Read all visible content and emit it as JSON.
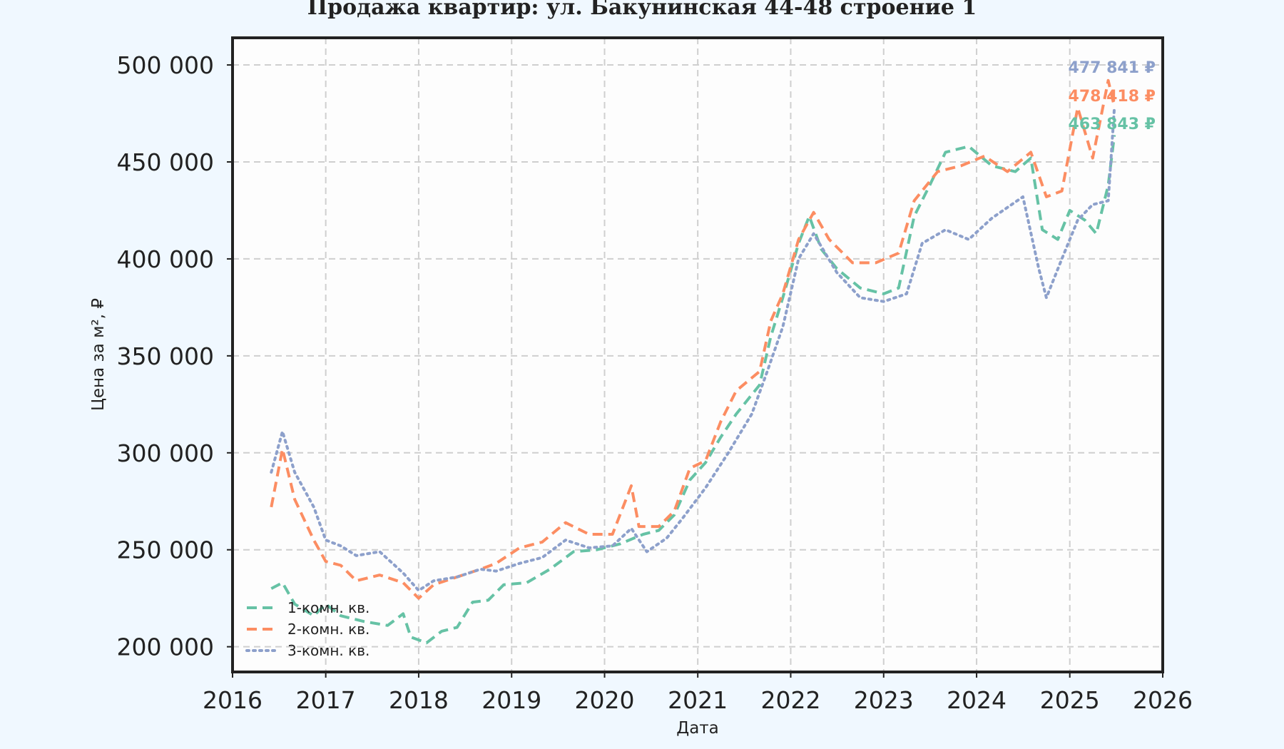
{
  "chart_data": {
    "type": "line",
    "title": "Продажа квартир: ул. Бакунинская 44-48 строение 1",
    "xlabel": "Дата",
    "ylabel": "Цена за м², ₽",
    "xlim": [
      "2016-01-01",
      "2026-01-01"
    ],
    "ylim": [
      187000,
      514000
    ],
    "x_ticks": [
      "2016",
      "2017",
      "2018",
      "2019",
      "2020",
      "2021",
      "2022",
      "2023",
      "2024",
      "2025",
      "2026"
    ],
    "y_ticks": [
      200000,
      250000,
      300000,
      350000,
      400000,
      450000,
      500000
    ],
    "y_tick_labels": [
      "200 000",
      "250 000",
      "300 000",
      "350 000",
      "400 000",
      "450 000",
      "500 000"
    ],
    "grid": true,
    "legend_position": "bottom-left",
    "series": [
      {
        "name": "1-комн. кв.",
        "color": "#66c2a5",
        "dash": "dashed",
        "end_label": "463 843 ₽",
        "points": [
          [
            "2016-06-01",
            230000
          ],
          [
            "2016-07-15",
            233000
          ],
          [
            "2016-09-01",
            222000
          ],
          [
            "2016-11-15",
            216000
          ],
          [
            "2017-01-01",
            222000
          ],
          [
            "2017-03-01",
            216000
          ],
          [
            "2017-06-01",
            213000
          ],
          [
            "2017-09-01",
            211000
          ],
          [
            "2017-11-01",
            217000
          ],
          [
            "2017-12-01",
            205000
          ],
          [
            "2018-02-01",
            202000
          ],
          [
            "2018-04-01",
            208000
          ],
          [
            "2018-06-01",
            210000
          ],
          [
            "2018-08-01",
            223000
          ],
          [
            "2018-10-01",
            224000
          ],
          [
            "2018-12-01",
            232000
          ],
          [
            "2019-03-01",
            233000
          ],
          [
            "2019-06-01",
            240000
          ],
          [
            "2019-09-01",
            249000
          ],
          [
            "2019-12-01",
            250000
          ],
          [
            "2020-03-01",
            253000
          ],
          [
            "2020-06-01",
            258000
          ],
          [
            "2020-08-01",
            260000
          ],
          [
            "2020-10-01",
            268000
          ],
          [
            "2020-12-01",
            286000
          ],
          [
            "2021-02-01",
            295000
          ],
          [
            "2021-04-01",
            308000
          ],
          [
            "2021-06-01",
            320000
          ],
          [
            "2021-09-01",
            335000
          ],
          [
            "2021-10-15",
            360000
          ],
          [
            "2021-12-01",
            380000
          ],
          [
            "2022-02-01",
            408000
          ],
          [
            "2022-03-15",
            422000
          ],
          [
            "2022-05-01",
            405000
          ],
          [
            "2022-07-01",
            395000
          ],
          [
            "2022-10-01",
            385000
          ],
          [
            "2023-01-01",
            382000
          ],
          [
            "2023-03-01",
            385000
          ],
          [
            "2023-05-01",
            422000
          ],
          [
            "2023-07-01",
            438000
          ],
          [
            "2023-09-01",
            455000
          ],
          [
            "2023-12-01",
            458000
          ],
          [
            "2024-03-01",
            448000
          ],
          [
            "2024-06-01",
            445000
          ],
          [
            "2024-08-01",
            452000
          ],
          [
            "2024-09-15",
            415000
          ],
          [
            "2024-11-15",
            410000
          ],
          [
            "2025-01-01",
            425000
          ],
          [
            "2025-03-01",
            420000
          ],
          [
            "2025-04-15",
            413000
          ],
          [
            "2025-06-01",
            438000
          ],
          [
            "2025-06-25",
            463843
          ]
        ]
      },
      {
        "name": "2-комн. кв.",
        "color": "#fc8d62",
        "dash": "dashed",
        "end_label": "478 418 ₽",
        "points": [
          [
            "2016-06-01",
            272000
          ],
          [
            "2016-07-15",
            302000
          ],
          [
            "2016-09-01",
            276000
          ],
          [
            "2016-11-15",
            255000
          ],
          [
            "2017-01-01",
            244000
          ],
          [
            "2017-03-01",
            242000
          ],
          [
            "2017-05-01",
            234000
          ],
          [
            "2017-08-01",
            237000
          ],
          [
            "2017-11-01",
            233000
          ],
          [
            "2018-01-01",
            225000
          ],
          [
            "2018-03-01",
            232000
          ],
          [
            "2018-06-01",
            236000
          ],
          [
            "2018-09-01",
            240000
          ],
          [
            "2018-11-01",
            243000
          ],
          [
            "2019-02-01",
            251000
          ],
          [
            "2019-05-01",
            254000
          ],
          [
            "2019-08-01",
            264000
          ],
          [
            "2019-11-01",
            258000
          ],
          [
            "2020-02-01",
            258000
          ],
          [
            "2020-04-15",
            283000
          ],
          [
            "2020-05-15",
            262000
          ],
          [
            "2020-08-01",
            262000
          ],
          [
            "2020-10-01",
            270000
          ],
          [
            "2020-12-01",
            292000
          ],
          [
            "2021-02-01",
            296000
          ],
          [
            "2021-04-01",
            316000
          ],
          [
            "2021-06-01",
            332000
          ],
          [
            "2021-09-01",
            342000
          ],
          [
            "2021-10-15",
            368000
          ],
          [
            "2021-12-01",
            382000
          ],
          [
            "2022-02-01",
            410000
          ],
          [
            "2022-04-01",
            424000
          ],
          [
            "2022-06-01",
            410000
          ],
          [
            "2022-09-01",
            398000
          ],
          [
            "2022-12-01",
            398000
          ],
          [
            "2023-03-01",
            403000
          ],
          [
            "2023-05-01",
            430000
          ],
          [
            "2023-08-01",
            445000
          ],
          [
            "2023-11-01",
            448000
          ],
          [
            "2024-02-01",
            453000
          ],
          [
            "2024-05-01",
            445000
          ],
          [
            "2024-08-01",
            455000
          ],
          [
            "2024-10-01",
            432000
          ],
          [
            "2024-12-01",
            435000
          ],
          [
            "2025-02-01",
            478000
          ],
          [
            "2025-04-01",
            452000
          ],
          [
            "2025-06-01",
            492000
          ],
          [
            "2025-06-25",
            478418
          ]
        ]
      },
      {
        "name": "3-комн. кв.",
        "color": "#8da0cb",
        "dash": "dotted",
        "end_label": "477 841 ₽",
        "points": [
          [
            "2016-06-01",
            290000
          ],
          [
            "2016-07-15",
            311000
          ],
          [
            "2016-09-01",
            290000
          ],
          [
            "2016-11-15",
            272000
          ],
          [
            "2017-01-01",
            255000
          ],
          [
            "2017-03-01",
            252000
          ],
          [
            "2017-05-01",
            247000
          ],
          [
            "2017-08-01",
            249000
          ],
          [
            "2017-11-01",
            238000
          ],
          [
            "2018-01-01",
            229000
          ],
          [
            "2018-03-01",
            234000
          ],
          [
            "2018-06-01",
            236000
          ],
          [
            "2018-09-01",
            240000
          ],
          [
            "2018-11-01",
            239000
          ],
          [
            "2019-02-01",
            243000
          ],
          [
            "2019-05-01",
            246000
          ],
          [
            "2019-08-01",
            255000
          ],
          [
            "2019-11-01",
            251000
          ],
          [
            "2020-02-01",
            252000
          ],
          [
            "2020-04-15",
            261000
          ],
          [
            "2020-06-15",
            249000
          ],
          [
            "2020-09-01",
            256000
          ],
          [
            "2020-11-01",
            266000
          ],
          [
            "2021-02-01",
            282000
          ],
          [
            "2021-05-01",
            300000
          ],
          [
            "2021-08-01",
            320000
          ],
          [
            "2021-10-01",
            342000
          ],
          [
            "2021-12-01",
            365000
          ],
          [
            "2022-02-01",
            400000
          ],
          [
            "2022-04-01",
            413000
          ],
          [
            "2022-07-01",
            393000
          ],
          [
            "2022-10-01",
            380000
          ],
          [
            "2023-01-01",
            378000
          ],
          [
            "2023-04-01",
            382000
          ],
          [
            "2023-06-01",
            408000
          ],
          [
            "2023-09-01",
            415000
          ],
          [
            "2023-12-01",
            410000
          ],
          [
            "2024-03-01",
            421000
          ],
          [
            "2024-07-01",
            432000
          ],
          [
            "2024-09-01",
            395000
          ],
          [
            "2024-10-01",
            380000
          ],
          [
            "2024-12-01",
            400000
          ],
          [
            "2025-02-01",
            420000
          ],
          [
            "2025-04-01",
            428000
          ],
          [
            "2025-06-01",
            430000
          ],
          [
            "2025-06-25",
            477841
          ]
        ]
      }
    ]
  }
}
